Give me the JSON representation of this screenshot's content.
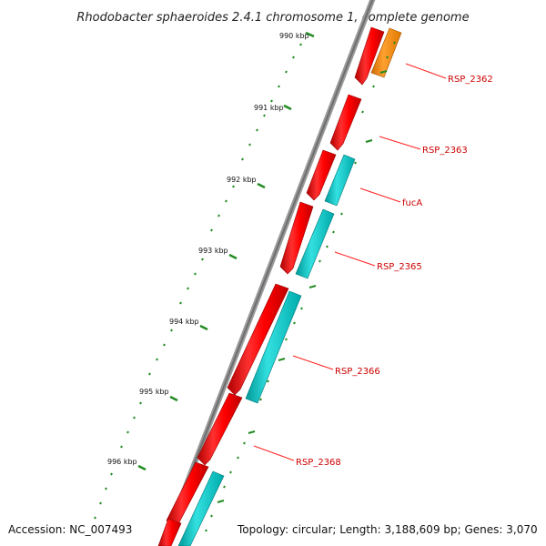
{
  "title": "Rhodobacter sphaeroides 2.4.1 chromosome 1, complete genome",
  "accession": "Accession: NC_007493",
  "summary": "Topology: circular; Length: 3,188,609 bp; Genes: 3,070",
  "ticks": [
    "990 kbp",
    "991 kbp",
    "992 kbp",
    "993 kbp",
    "994 kbp",
    "995 kbp",
    "996 kbp"
  ],
  "gene_labels": [
    "RSP_2362",
    "RSP_2363",
    "fucA",
    "RSP_2365",
    "RSP_2366",
    "RSP_2368"
  ],
  "colors": {
    "forward_gene": "#ff0000",
    "reverse_gene": "#00cccc",
    "highlight_gene": "#ff8800",
    "label": "#cc0000",
    "tick": "#228b22",
    "backbone": "#777777"
  }
}
